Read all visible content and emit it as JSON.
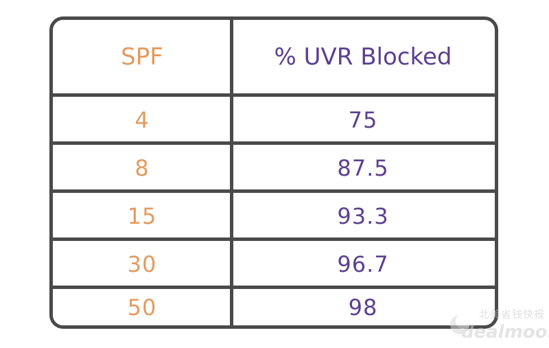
{
  "chart_data": {
    "type": "table",
    "columns": [
      "SPF",
      "% UVR Blocked"
    ],
    "rows": [
      [
        "4",
        "75"
      ],
      [
        "8",
        "87.5"
      ],
      [
        "15",
        "93.3"
      ],
      [
        "30",
        "96.7"
      ],
      [
        "50",
        "98"
      ]
    ],
    "colors": {
      "spf_text": "#e49a5e",
      "uvr_text": "#5c3f91",
      "border": "#4a4a4a"
    }
  },
  "watermark": {
    "cn_text": "北美省钱快报",
    "en_text": "dealmoon"
  }
}
